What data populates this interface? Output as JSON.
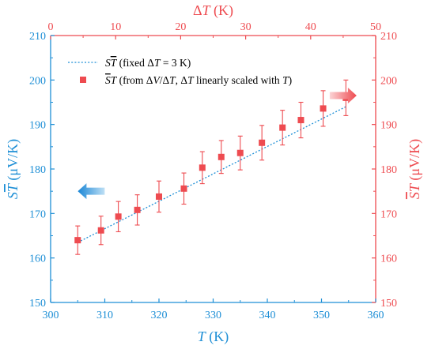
{
  "chart_data": {
    "type": "scatter",
    "x_bottom_label_var": "T",
    "x_bottom_label_unit": " (K)",
    "x_top_label_prefix": "Δ",
    "x_top_label_var": "T",
    "x_top_label_unit": " (K)",
    "y_left_label_var": "S",
    "y_left_label_bar_var": "T",
    "y_left_label_unit": " (μV/K)",
    "y_right_label_bar_var": "S",
    "y_right_label_arg": "T",
    "y_right_label_unit": " (μV/K)",
    "xlim_bottom": [
      300,
      360
    ],
    "xticks_bottom": [
      "300",
      "310",
      "320",
      "330",
      "340",
      "350",
      "360"
    ],
    "xlim_top": [
      0,
      50
    ],
    "xticks_top": [
      "0",
      "10",
      "20",
      "30",
      "40",
      "50"
    ],
    "ylim": [
      150,
      210
    ],
    "yticks": [
      "150",
      "160",
      "170",
      "180",
      "190",
      "200",
      "210"
    ],
    "grid": false,
    "legend_position": "top-left",
    "legend": {
      "line_label_var": "S",
      "line_label_bar_var": "T",
      "line_label_text": " (fixed Δ",
      "line_label_var2": "T",
      "line_label_end": " = 3 K)",
      "marker_label_bar_var": "S",
      "marker_label_arg": "T",
      "marker_label_text": " (from Δ",
      "marker_label_var2": "V",
      "marker_label_mid": "/Δ",
      "marker_label_var3": "T",
      "marker_label_mid2": ", Δ",
      "marker_label_var4": "T",
      "marker_label_mid3": " linearly scaled with ",
      "marker_label_var5": "T",
      "marker_label_end": ")"
    },
    "series": [
      {
        "style": "dotted-line",
        "color": "#1e8fd6",
        "x": [
          305,
          354.5
        ],
        "y": [
          163.5,
          194
        ]
      },
      {
        "style": "square-markers-errorbars",
        "color": "#ee4b50",
        "x": [
          305,
          309.3,
          312.5,
          316,
          320,
          324.6,
          328,
          331.5,
          335,
          339,
          342.8,
          346.2,
          350.3,
          354.5
        ],
        "y": [
          164,
          166.2,
          169.3,
          170.8,
          173.8,
          175.6,
          180.3,
          182.7,
          183.6,
          185.9,
          189.3,
          191,
          193.6,
          196
        ],
        "yerr": [
          3.2,
          3.2,
          3.4,
          3.4,
          3.5,
          3.5,
          3.6,
          3.7,
          3.8,
          3.9,
          3.9,
          4.0,
          4.0,
          4.0
        ]
      }
    ],
    "colors": {
      "left_axis": "#1e8fd6",
      "right_axis": "#ee4b50",
      "bottom_axis": "#1e8fd6",
      "top_axis": "#ee4b50",
      "blue_arrow": "#2b97e0",
      "red_arrow": "#f06a70"
    },
    "arrows": [
      {
        "name": "blue-arrow-left",
        "direction": "left",
        "x": 307.5,
        "y": 175
      },
      {
        "name": "red-arrow-right",
        "direction": "right",
        "x": 354,
        "y": 196.5
      }
    ]
  }
}
